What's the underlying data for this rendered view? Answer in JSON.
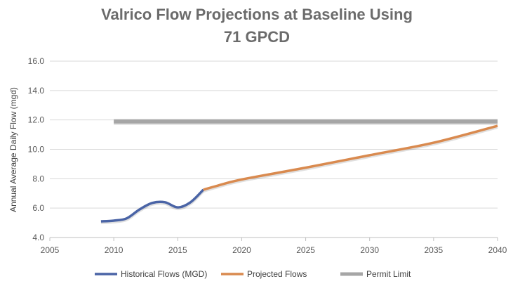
{
  "chart_data": {
    "type": "line",
    "title_lines": [
      "Valrico Flow Projections at Baseline Using",
      "71 GPCD"
    ],
    "xlabel": "",
    "ylabel": "Annual Average Daily Flow (mgd)",
    "xlim": [
      2005,
      2040
    ],
    "ylim": [
      4.0,
      16.0
    ],
    "x_ticks": [
      "2005",
      "2010",
      "2015",
      "2020",
      "2025",
      "2030",
      "2035",
      "2040"
    ],
    "y_ticks": [
      "4.0",
      "6.0",
      "8.0",
      "10.0",
      "12.0",
      "14.0",
      "16.0"
    ],
    "grid": "horizontal",
    "legend_position": "bottom",
    "series": [
      {
        "name": "Historical Flows (MGD)",
        "color": "#4a64a6",
        "x": [
          2009,
          2010,
          2011,
          2012,
          2013,
          2014,
          2015,
          2016,
          2017
        ],
        "y": [
          5.1,
          5.15,
          5.3,
          5.9,
          6.35,
          6.4,
          6.05,
          6.4,
          7.25
        ]
      },
      {
        "name": "Projected Flows",
        "color": "#d98a4f",
        "x": [
          2017,
          2018,
          2020,
          2025,
          2030,
          2035,
          2040
        ],
        "y": [
          7.25,
          7.5,
          7.95,
          8.75,
          9.6,
          10.45,
          11.6
        ]
      },
      {
        "name": "Permit Limit",
        "color": "#a6a6a6",
        "x": [
          2010,
          2040
        ],
        "y": [
          11.9,
          11.9
        ]
      }
    ]
  }
}
